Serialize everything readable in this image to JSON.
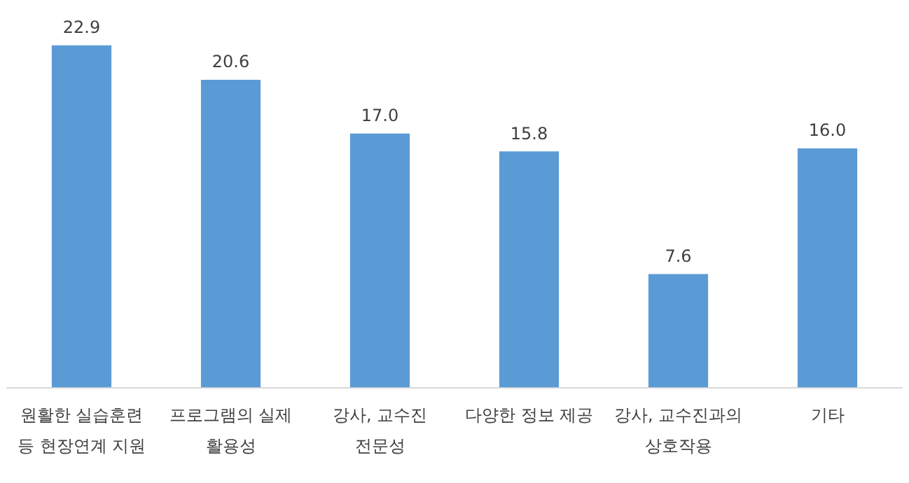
{
  "chart_data": {
    "type": "bar",
    "categories": [
      "원활한 실습훈련 등 현장연계 지원",
      "프로그램의 실제 활용성",
      "강사, 교수진 전문성",
      "다양한 정보 제공",
      "강사, 교수진과의 상호작용",
      "기타"
    ],
    "values": [
      22.9,
      20.6,
      17.0,
      15.8,
      7.6,
      16.0
    ],
    "value_labels": [
      "22.9",
      "20.6",
      "17.0",
      "15.8",
      "7.6",
      "16.0"
    ],
    "color": "#5b9bd5",
    "grid": false,
    "legend": false
  }
}
